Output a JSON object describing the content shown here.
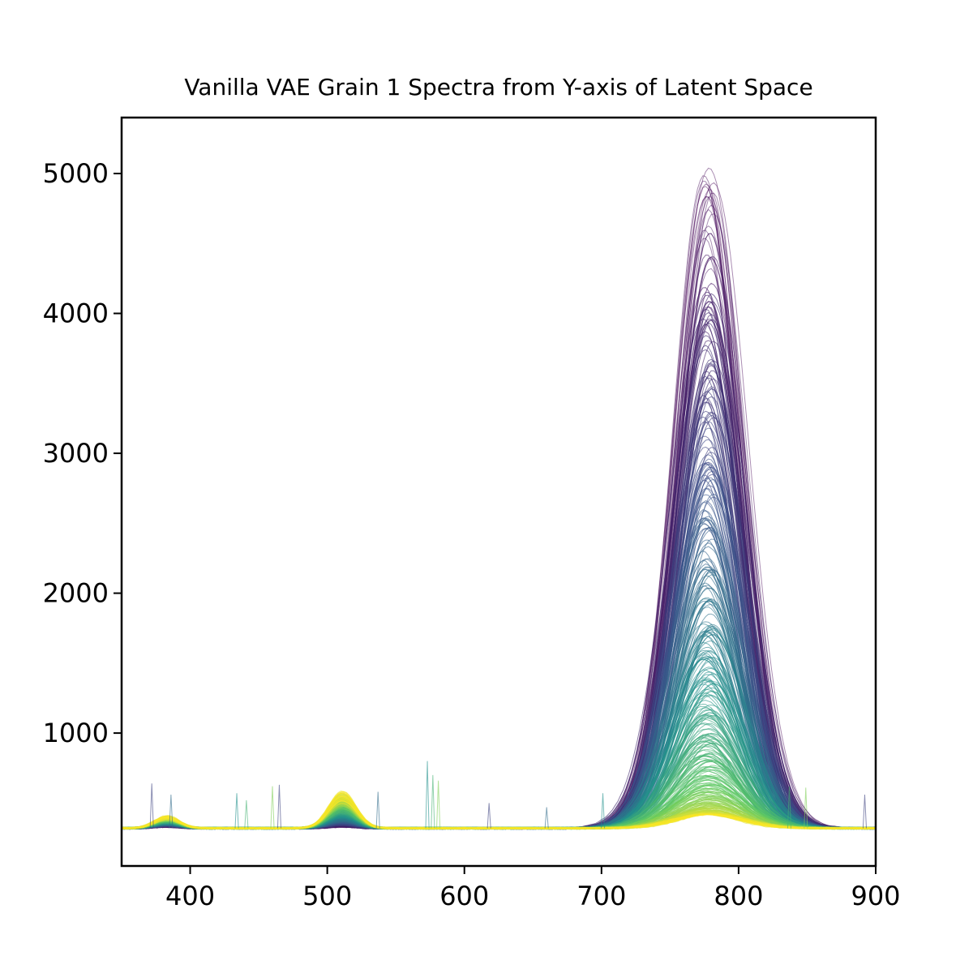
{
  "chart_data": {
    "type": "line",
    "title": "Vanilla VAE Grain 1 Spectra from Y-axis of Latent Space",
    "xlabel": "",
    "ylabel": "",
    "xlim": [
      350,
      900
    ],
    "ylim": [
      50,
      5400
    ],
    "x_ticks": [
      400,
      500,
      600,
      700,
      800,
      900
    ],
    "y_ticks": [
      1000,
      2000,
      3000,
      4000,
      5000
    ],
    "grid": false,
    "legend": "none",
    "colormap": "viridis",
    "colormap_stops": [
      "#440154",
      "#3b528b",
      "#21918c",
      "#5ec962",
      "#fde725"
    ],
    "series_count": 400,
    "baseline": 320,
    "peak_main": {
      "center": 778,
      "sigma": 24,
      "max_height": 5170,
      "min_height": 420
    },
    "peak_green": {
      "center": 511,
      "sigma": 10,
      "max_height": 600,
      "min_height": 330
    },
    "peak_uv": {
      "center": 383,
      "sigma": 9,
      "max_height": 410,
      "min_height": 330
    },
    "spikes": [
      {
        "x": 372,
        "y": 640
      },
      {
        "x": 386,
        "y": 560
      },
      {
        "x": 434,
        "y": 570
      },
      {
        "x": 441,
        "y": 520
      },
      {
        "x": 460,
        "y": 620
      },
      {
        "x": 465,
        "y": 630
      },
      {
        "x": 537,
        "y": 580
      },
      {
        "x": 573,
        "y": 800
      },
      {
        "x": 577,
        "y": 700
      },
      {
        "x": 581,
        "y": 660
      },
      {
        "x": 618,
        "y": 500
      },
      {
        "x": 660,
        "y": 470
      },
      {
        "x": 701,
        "y": 570
      },
      {
        "x": 837,
        "y": 620
      },
      {
        "x": 849,
        "y": 610
      },
      {
        "x": 892,
        "y": 560
      }
    ]
  }
}
